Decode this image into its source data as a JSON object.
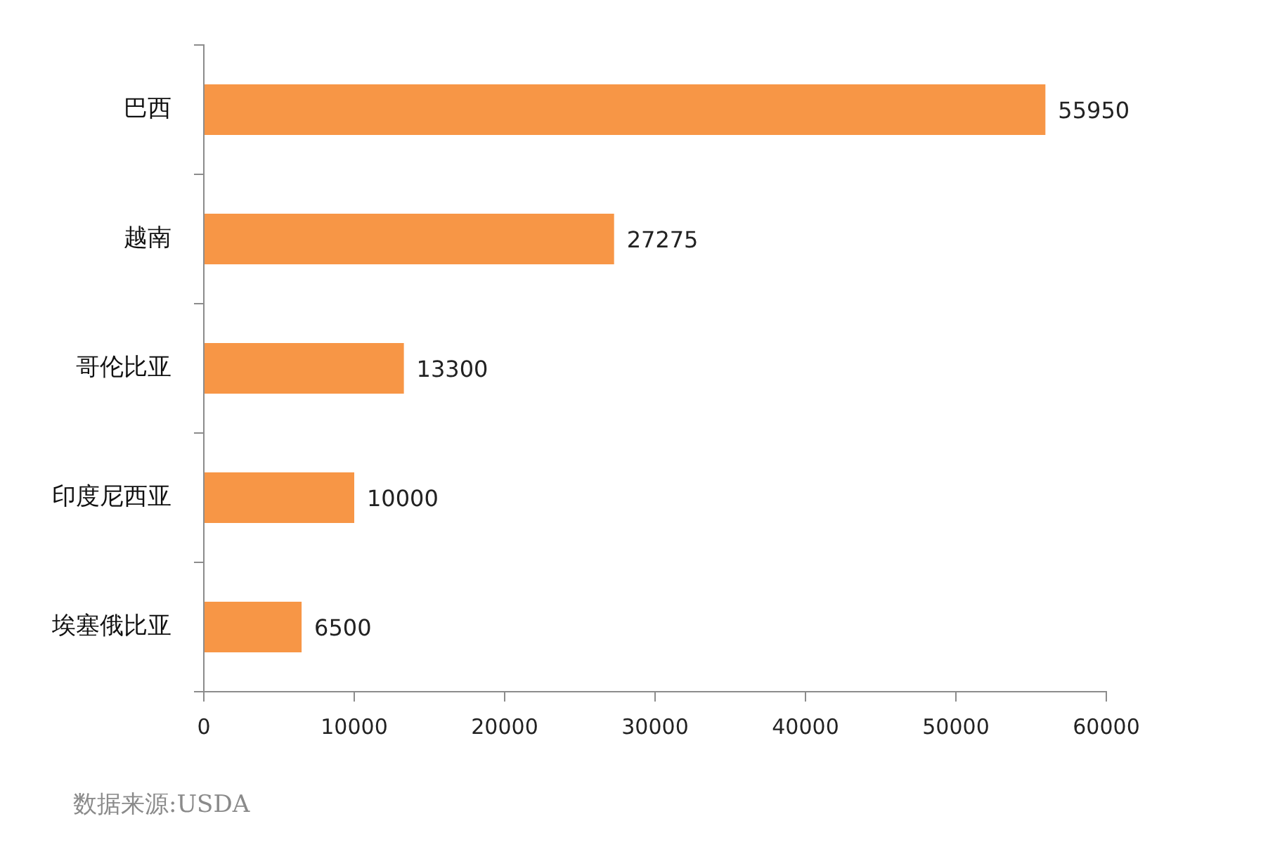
{
  "chart_data": {
    "type": "bar",
    "orientation": "horizontal",
    "categories": [
      "巴西",
      "越南",
      "哥伦比亚",
      "印度尼西亚",
      "埃塞俄比亚"
    ],
    "values": [
      55950,
      27275,
      13300,
      10000,
      6500
    ],
    "color": "#f79646",
    "xlim": [
      0,
      60000
    ],
    "xticks": [
      0,
      10000,
      20000,
      30000,
      40000,
      50000,
      60000
    ],
    "data_labels": true,
    "grid": false,
    "annotations": [
      "数据来源:USDA"
    ]
  }
}
